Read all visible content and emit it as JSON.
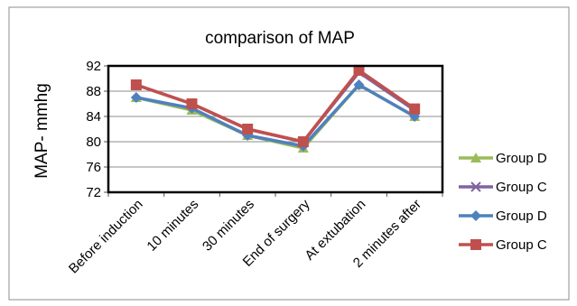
{
  "chart_data": {
    "type": "line",
    "title": "comparison of MAP",
    "xlabel": "",
    "ylabel": "MAP- mmhg",
    "ylim": [
      72,
      92
    ],
    "yticks": [
      72,
      76,
      80,
      84,
      88,
      92
    ],
    "categories": [
      "Before induction",
      "10 minutes",
      "30 minutes",
      "End of surgery",
      "At extubation",
      "2 minutes after"
    ],
    "grid": true,
    "legend_position": "right",
    "series": [
      {
        "name": "Group D",
        "values": [
          87,
          85,
          81,
          79,
          89,
          84
        ],
        "color": "#9bbb59",
        "marker": "triangle"
      },
      {
        "name": "Group C",
        "values": [
          89,
          86,
          82,
          80,
          91,
          85
        ],
        "color": "#8064a2",
        "marker": "x"
      },
      {
        "name": "Group D",
        "values": [
          87,
          85.3,
          81,
          79.3,
          89,
          84
        ],
        "color": "#4f81bd",
        "marker": "diamond"
      },
      {
        "name": "Group C",
        "values": [
          89,
          86,
          82,
          80,
          91.3,
          85.2
        ],
        "color": "#c0504d",
        "marker": "square"
      }
    ]
  }
}
